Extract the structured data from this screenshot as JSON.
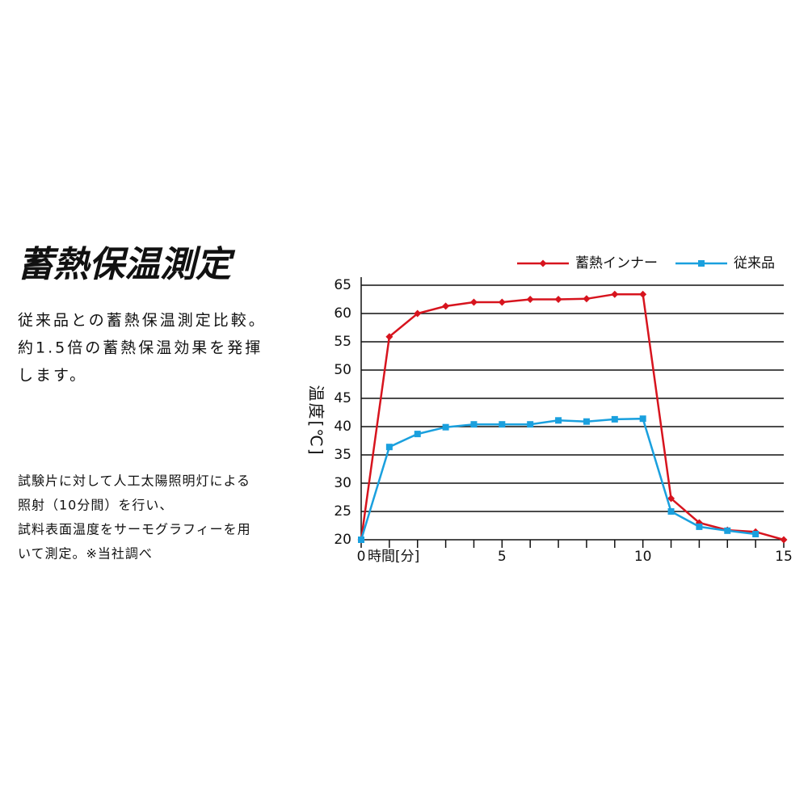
{
  "heading": "蓄熱保温測定",
  "description": [
    "従来品との蓄熱保温測定比較。",
    "約1.5倍の蓄熱保温効果を発揮",
    "します。"
  ],
  "note": [
    "試験片に対して人工太陽照明灯による",
    "照射（10分間）を行い、",
    "試料表面温度をサーモグラフィーを用",
    "いて測定。※当社調べ"
  ],
  "chart_data": {
    "type": "line",
    "x_label": "時間[分]",
    "y_label": "温度[℃]",
    "x": [
      0,
      1,
      2,
      3,
      4,
      5,
      6,
      7,
      8,
      9,
      10,
      11,
      12,
      13,
      14,
      15
    ],
    "series": [
      {
        "name": "蓄熱インナー",
        "color": "#d7141e",
        "marker": "diamond",
        "values": [
          20,
          55.9,
          60,
          61.3,
          62,
          62,
          62.5,
          62.5,
          62.6,
          63.4,
          63.4,
          27.3,
          23,
          21.7,
          21.4,
          20
        ]
      },
      {
        "name": "従来品",
        "color": "#1aa0de",
        "marker": "square",
        "values": [
          20,
          36.4,
          38.7,
          39.9,
          40.4,
          40.4,
          40.4,
          41.1,
          40.9,
          41.3,
          41.4,
          25,
          22.3,
          21.6,
          21,
          null
        ]
      }
    ],
    "xlim": [
      0,
      15
    ],
    "xticks": [
      0,
      5,
      10,
      15
    ],
    "xminorticks": [
      1,
      2,
      3,
      4,
      6,
      7,
      8,
      9,
      11,
      12,
      13,
      14
    ],
    "ylim": [
      20,
      65
    ],
    "yticks": [
      20,
      25,
      30,
      35,
      40,
      45,
      50,
      55,
      60,
      65
    ],
    "grid": true,
    "legend": "top-right"
  }
}
